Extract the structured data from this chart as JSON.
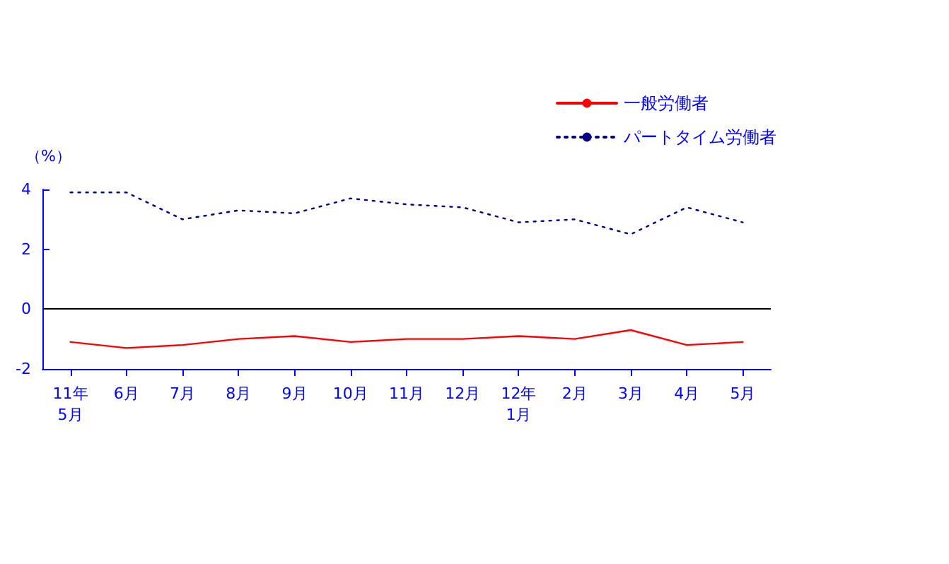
{
  "chart_data": {
    "type": "line",
    "ylabel": "（%）",
    "categories": [
      "11年\n5月",
      "6月",
      "7月",
      "8月",
      "9月",
      "10月",
      "11月",
      "12月",
      "12年\n1月",
      "2月",
      "3月",
      "4月",
      "5月"
    ],
    "series": [
      {
        "name": "一般労働者",
        "color": "#ff0000",
        "line_style": "solid",
        "values": [
          -1.1,
          -1.3,
          -1.2,
          -1.0,
          -0.9,
          -1.1,
          -1.0,
          -1.0,
          -0.9,
          -1.0,
          -0.7,
          -1.2,
          -1.1
        ]
      },
      {
        "name": "パートタイム労働者",
        "color": "#000080",
        "line_style": "dotted",
        "values": [
          3.9,
          3.9,
          3.0,
          3.3,
          3.2,
          3.7,
          3.5,
          3.4,
          2.9,
          3.0,
          2.5,
          3.4,
          2.9
        ]
      }
    ],
    "ylim": [
      -2,
      4
    ],
    "yticks": [
      -2,
      0,
      2,
      4
    ],
    "grid": false,
    "legend": "top right",
    "marker": "none",
    "ref_lines": [
      {
        "axis": "y",
        "value": 0,
        "color": "#000000"
      }
    ]
  }
}
